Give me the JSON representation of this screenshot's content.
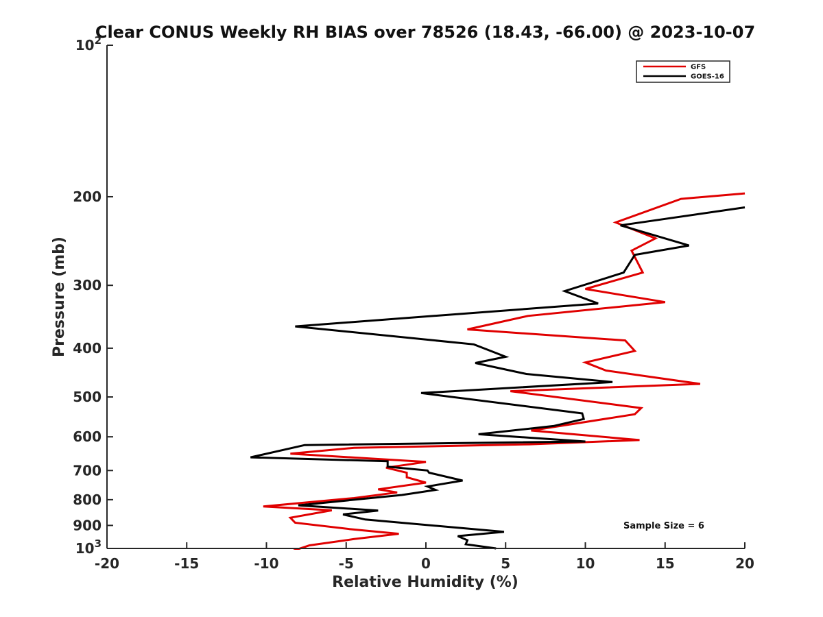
{
  "chart_data": {
    "type": "line",
    "title": "Clear CONUS Weekly RH BIAS over 78526 (18.43, -66.00) @ 2023-10-07",
    "xlabel": "Relative Humidity (%)",
    "ylabel": "Pressure (mb)",
    "xlim": [
      -20,
      20
    ],
    "ylim": [
      100,
      1000
    ],
    "y_scale": "log",
    "y_reversed": true,
    "x_ticks": [
      -20,
      -15,
      -10,
      -5,
      0,
      5,
      10,
      15,
      20
    ],
    "x_tick_labels": [
      "-20",
      "-15",
      "-10",
      "-5",
      "0",
      "5",
      "10",
      "15",
      "20"
    ],
    "y_ticks": [
      {
        "value": 100,
        "base": "10",
        "exp": "2"
      },
      {
        "value": 200,
        "base": "200",
        "exp": ""
      },
      {
        "value": 300,
        "base": "300",
        "exp": ""
      },
      {
        "value": 400,
        "base": "400",
        "exp": ""
      },
      {
        "value": 500,
        "base": "500",
        "exp": ""
      },
      {
        "value": 600,
        "base": "600",
        "exp": ""
      },
      {
        "value": 700,
        "base": "700",
        "exp": ""
      },
      {
        "value": 800,
        "base": "800",
        "exp": ""
      },
      {
        "value": 900,
        "base": "900",
        "exp": ""
      },
      {
        "value": 1000,
        "base": "10",
        "exp": "3"
      }
    ],
    "grid": false,
    "legend_position": "top-right",
    "annotation": "Sample Size = 6",
    "series": [
      {
        "name": "GFS",
        "color": "#e00000",
        "points": [
          [
            20.0,
            197
          ],
          [
            16.0,
            202
          ],
          [
            11.9,
            225
          ],
          [
            14.4,
            242
          ],
          [
            12.9,
            256
          ],
          [
            13.6,
            283
          ],
          [
            10.0,
            305
          ],
          [
            15.0,
            324
          ],
          [
            6.4,
            345
          ],
          [
            2.6,
            367
          ],
          [
            12.5,
            386
          ],
          [
            13.1,
            405
          ],
          [
            10.0,
            427
          ],
          [
            11.3,
            443
          ],
          [
            17.2,
            471
          ],
          [
            5.3,
            487
          ],
          [
            13.5,
            526
          ],
          [
            13.1,
            541
          ],
          [
            6.6,
            583
          ],
          [
            13.4,
            609
          ],
          [
            6.5,
            621
          ],
          [
            -4.5,
            631
          ],
          [
            -8.5,
            648
          ],
          [
            0.0,
            673
          ],
          [
            -2.5,
            691
          ],
          [
            -1.2,
            707
          ],
          [
            -1.2,
            722
          ],
          [
            0.0,
            740
          ],
          [
            -3.0,
            763
          ],
          [
            -1.8,
            774
          ],
          [
            -4.5,
            794
          ],
          [
            -10.2,
            825
          ],
          [
            -5.9,
            840
          ],
          [
            -8.5,
            869
          ],
          [
            -8.2,
            889
          ],
          [
            -4.8,
            915
          ],
          [
            -1.7,
            935
          ],
          [
            -4.5,
            958
          ],
          [
            -7.3,
            986
          ],
          [
            -8.3,
            1010
          ]
        ]
      },
      {
        "name": "GOES-16",
        "color": "#000000",
        "points": [
          [
            20.0,
            210
          ],
          [
            12.2,
            228
          ],
          [
            16.5,
            250
          ],
          [
            13.1,
            261
          ],
          [
            12.4,
            283
          ],
          [
            8.7,
            308
          ],
          [
            10.8,
            326
          ],
          [
            -8.2,
            362
          ],
          [
            3.0,
            393
          ],
          [
            5.0,
            416
          ],
          [
            3.1,
            428
          ],
          [
            6.3,
            450
          ],
          [
            11.7,
            467
          ],
          [
            -0.3,
            491
          ],
          [
            9.8,
            539
          ],
          [
            9.9,
            553
          ],
          [
            8.0,
            571
          ],
          [
            3.3,
            593
          ],
          [
            10.0,
            613
          ],
          [
            -7.6,
            623
          ],
          [
            -11.0,
            659
          ],
          [
            -2.4,
            671
          ],
          [
            -2.4,
            688
          ],
          [
            0.1,
            700
          ],
          [
            0.2,
            707
          ],
          [
            2.3,
            733
          ],
          [
            0.1,
            753
          ],
          [
            0.6,
            765
          ],
          [
            -1.5,
            783
          ],
          [
            -8.0,
            821
          ],
          [
            -3.0,
            841
          ],
          [
            -5.2,
            856
          ],
          [
            -3.8,
            876
          ],
          [
            4.9,
            927
          ],
          [
            2.0,
            945
          ],
          [
            2.6,
            963
          ],
          [
            2.5,
            981
          ],
          [
            4.4,
            1000
          ]
        ]
      }
    ]
  }
}
